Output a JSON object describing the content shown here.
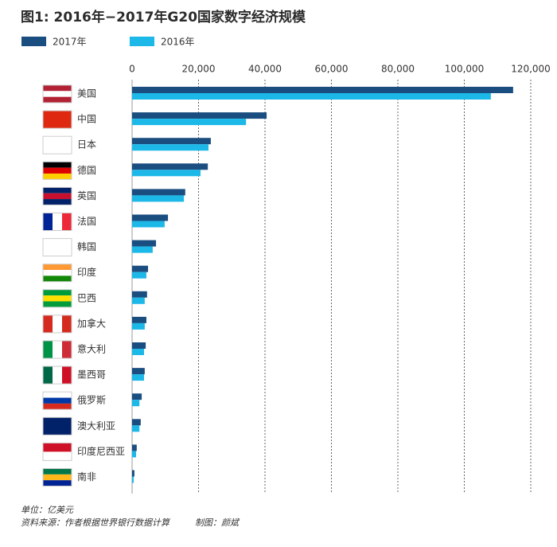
{
  "chart_data": {
    "type": "hbar",
    "title": "图1: 2016年−2017年G20国家数字经济规模",
    "categories": [
      "美国",
      "中国",
      "日本",
      "德国",
      "英国",
      "法国",
      "韩国",
      "印度",
      "巴西",
      "加拿大",
      "意大利",
      "墨西哥",
      "俄罗斯",
      "澳大利亚",
      "印度尼西亚",
      "南非"
    ],
    "series": [
      {
        "name": "2017年",
        "color": "#1a4e80",
        "values": [
          114700,
          40500,
          23700,
          22800,
          16000,
          10800,
          7200,
          4800,
          4500,
          4300,
          4100,
          3800,
          2900,
          2600,
          1400,
          700
        ]
      },
      {
        "name": "2016年",
        "color": "#1cb8e8",
        "values": [
          108000,
          34300,
          23000,
          20600,
          15600,
          9800,
          6200,
          4300,
          3800,
          3800,
          3600,
          3600,
          2200,
          2200,
          1200,
          500
        ]
      }
    ],
    "xlim": [
      0,
      120000
    ],
    "xticks": [
      0,
      {
        "value": 20000,
        "label": "20,000"
      },
      {
        "value": 40000,
        "label": "40,000"
      },
      {
        "value": 60000,
        "label": "60,000"
      },
      {
        "value": 80000,
        "label": "80,000"
      },
      {
        "value": 100000,
        "label": "100,000"
      },
      {
        "value": 120000,
        "label": "120,000"
      }
    ],
    "grid": true,
    "notes": [
      "单位：亿美元",
      "资料来源：作者根据世界银行数据计算",
      "制图：颜斌"
    ]
  }
}
